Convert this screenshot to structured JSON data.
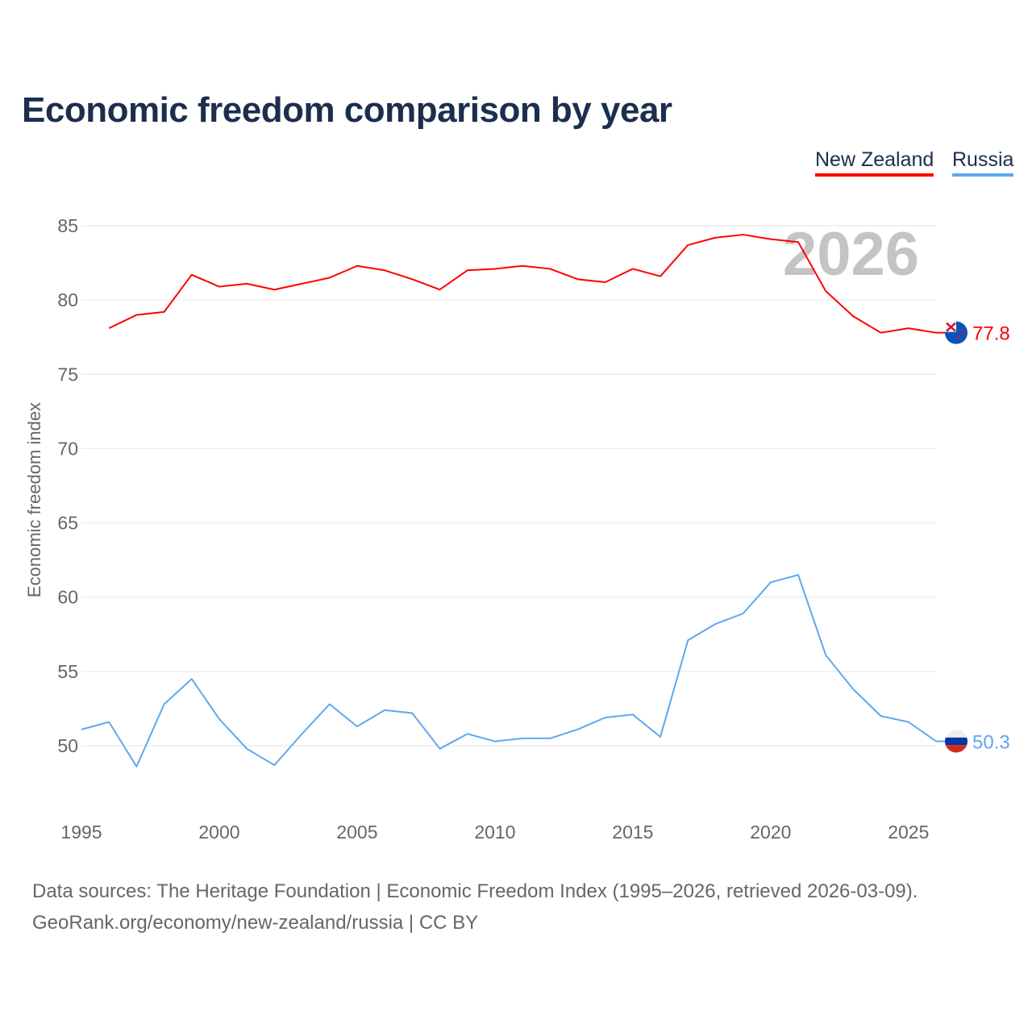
{
  "title": "Economic freedom comparison by year",
  "source_lines": [
    "Data sources: The Heritage Foundation | Economic Freedom Index (1995–2026, retrieved 2026-03-09).",
    "GeoRank.org/economy/new-zealand/russia | CC BY"
  ],
  "chart_data": {
    "type": "line",
    "title": "Economic freedom comparison by year",
    "xlabel": "",
    "ylabel": "Economic freedom index",
    "xlim": [
      1995,
      2026
    ],
    "ylim": [
      45,
      87
    ],
    "yticks": [
      50,
      55,
      60,
      65,
      70,
      75,
      80,
      85
    ],
    "xticks": [
      1995,
      2000,
      2005,
      2010,
      2015,
      2020,
      2025
    ],
    "grid": true,
    "legend_position": "top-right",
    "watermark_year": "2026",
    "series": [
      {
        "name": "New Zealand",
        "color": "#ff0000",
        "end_label": "77.8",
        "flag": "new-zealand",
        "x": [
          1996,
          1997,
          1998,
          1999,
          2000,
          2001,
          2002,
          2003,
          2004,
          2005,
          2006,
          2007,
          2008,
          2009,
          2010,
          2011,
          2012,
          2013,
          2014,
          2015,
          2016,
          2017,
          2018,
          2019,
          2020,
          2021,
          2022,
          2023,
          2024,
          2025,
          2026
        ],
        "values": [
          78.1,
          79.0,
          79.2,
          81.7,
          80.9,
          81.1,
          80.7,
          81.1,
          81.5,
          82.3,
          82.0,
          81.4,
          80.7,
          82.0,
          82.1,
          82.3,
          82.1,
          81.4,
          81.2,
          82.1,
          81.6,
          83.7,
          84.2,
          84.4,
          84.1,
          83.9,
          80.6,
          78.9,
          77.8,
          78.1,
          77.8
        ]
      },
      {
        "name": "Russia",
        "color": "#5ea8ef",
        "end_label": "50.3",
        "flag": "russia",
        "x": [
          1995,
          1996,
          1997,
          1998,
          1999,
          2000,
          2001,
          2002,
          2003,
          2004,
          2005,
          2006,
          2007,
          2008,
          2009,
          2010,
          2011,
          2012,
          2013,
          2014,
          2015,
          2016,
          2017,
          2018,
          2019,
          2020,
          2021,
          2022,
          2023,
          2024,
          2025,
          2026
        ],
        "values": [
          51.1,
          51.6,
          48.6,
          52.8,
          54.5,
          51.8,
          49.8,
          48.7,
          50.8,
          52.8,
          51.3,
          52.4,
          52.2,
          49.8,
          50.8,
          50.3,
          50.5,
          50.5,
          51.1,
          51.9,
          52.1,
          50.6,
          57.1,
          58.2,
          58.9,
          61.0,
          61.5,
          56.1,
          53.8,
          52.0,
          51.6,
          50.3
        ]
      }
    ]
  }
}
